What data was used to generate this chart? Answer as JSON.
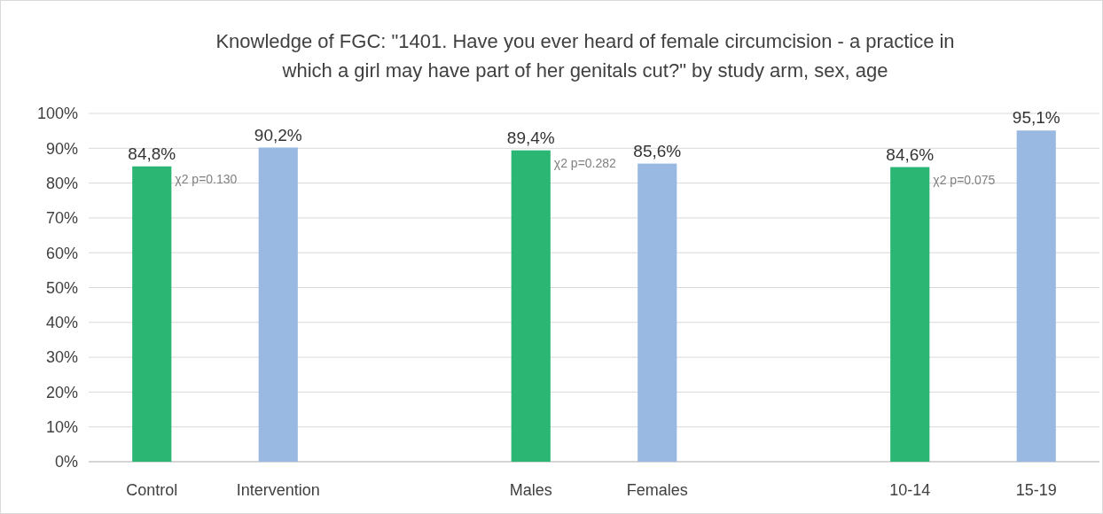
{
  "chart_data": {
    "type": "bar",
    "title": "Knowledge of FGC: \"1401. Have you ever heard of female circumcision - a practice in which a girl may have part of her genitals cut?\" by study arm, sex, age",
    "categories": [
      "Control",
      "Intervention",
      null,
      "Males",
      "Females",
      null,
      "10-14",
      "15-19"
    ],
    "values": [
      84.8,
      90.2,
      null,
      89.4,
      85.6,
      null,
      84.6,
      95.1
    ],
    "colors": [
      "#2bb673",
      "#9ab9e2",
      null,
      "#2bb673",
      "#9ab9e2",
      null,
      "#2bb673",
      "#9ab9e2"
    ],
    "value_labels": [
      "84,8%",
      "90,2%",
      null,
      "89,4%",
      "85,6%",
      null,
      "84,6%",
      "95,1%"
    ],
    "annotations": [
      "χ2 p=0.130",
      "χ2 p=0.282",
      "χ2 p=0.075"
    ],
    "ylim": [
      0,
      100
    ],
    "yticks": [
      {
        "value": 0,
        "label": "0%"
      },
      {
        "value": 10,
        "label": "10%"
      },
      {
        "value": 20,
        "label": "20%"
      },
      {
        "value": 30,
        "label": "30%"
      },
      {
        "value": 40,
        "label": "40%"
      },
      {
        "value": 50,
        "label": "50%"
      },
      {
        "value": 60,
        "label": "60%"
      },
      {
        "value": 70,
        "label": "70%"
      },
      {
        "value": 80,
        "label": "80%"
      },
      {
        "value": 90,
        "label": "90%"
      },
      {
        "value": 100,
        "label": "100%"
      }
    ],
    "grid": "y"
  }
}
